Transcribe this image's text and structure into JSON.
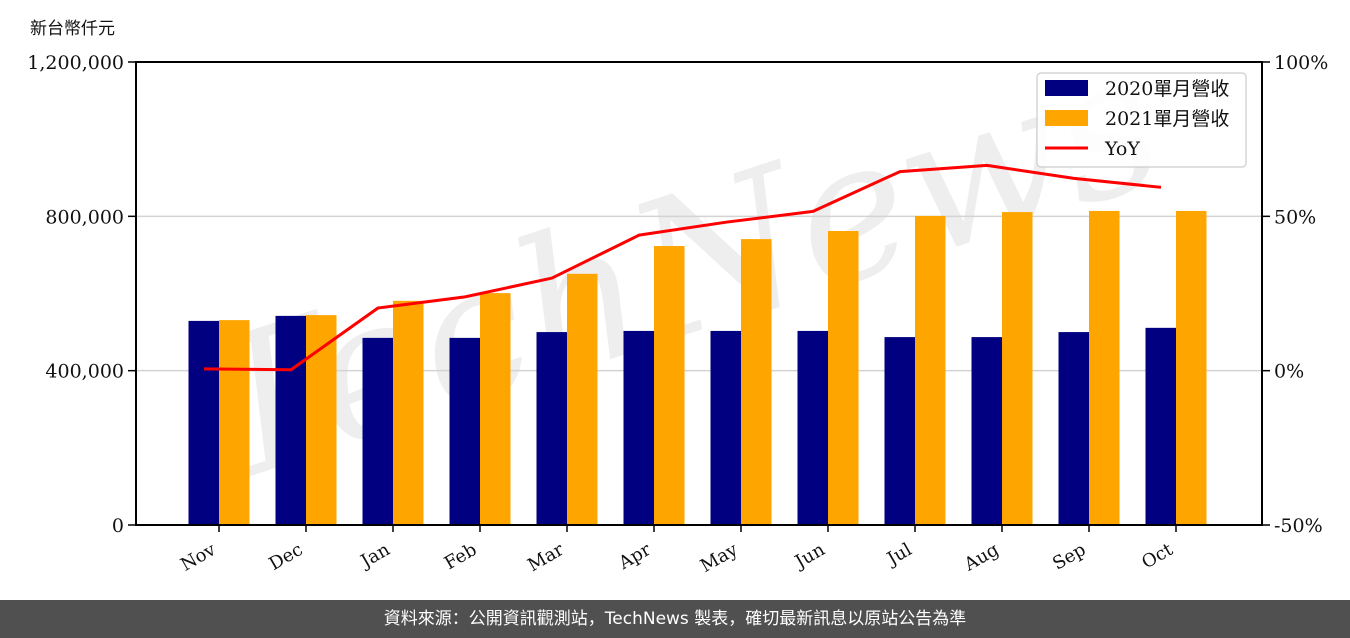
{
  "unit_label": "新台幣仟元",
  "footer": "資料來源：公開資訊觀測站，TechNews 製表，確切最新訊息以原站公告為準",
  "watermark": "TechNews",
  "colors": {
    "series_2020": "#000080",
    "series_2021": "#FFA500",
    "yoy": "#FF0000",
    "grid": "#D3D3D3",
    "footer_bg": "#505050"
  },
  "chart_data": {
    "type": "bar",
    "title": "",
    "xlabel": "",
    "ylabel": "新台幣仟元",
    "y2label": "",
    "categories": [
      "Nov",
      "Dec",
      "Jan",
      "Feb",
      "Mar",
      "Apr",
      "May",
      "Jun",
      "Jul",
      "Aug",
      "Sep",
      "Oct"
    ],
    "series": [
      {
        "name": "2020單月營收",
        "type": "bar",
        "axis": "left",
        "values": [
          529000,
          542000,
          485000,
          485000,
          500000,
          503000,
          503000,
          503000,
          487000,
          487000,
          500000,
          511000
        ]
      },
      {
        "name": "2021單月營收",
        "type": "bar",
        "axis": "left",
        "values": [
          531000,
          544000,
          581000,
          601000,
          651000,
          723000,
          741000,
          762000,
          801000,
          811000,
          814000,
          814000
        ]
      },
      {
        "name": "YoY",
        "type": "line",
        "axis": "right",
        "unit": "%",
        "values": [
          0.6,
          0.3,
          20.3,
          23.9,
          30.0,
          43.9,
          48.1,
          51.6,
          64.5,
          66.5,
          62.3,
          59.4
        ]
      }
    ],
    "ylim": [
      0,
      1200000
    ],
    "y_ticks": [
      "0",
      "400,000",
      "800,000",
      "1,200,000"
    ],
    "y2lim": [
      -50,
      100
    ],
    "y2_ticks": [
      "-50%",
      "0%",
      "50%",
      "100%"
    ],
    "grid": true,
    "legend_position": "upper right",
    "legend": [
      "2020單月營收",
      "2021單月營收",
      "YoY"
    ]
  }
}
